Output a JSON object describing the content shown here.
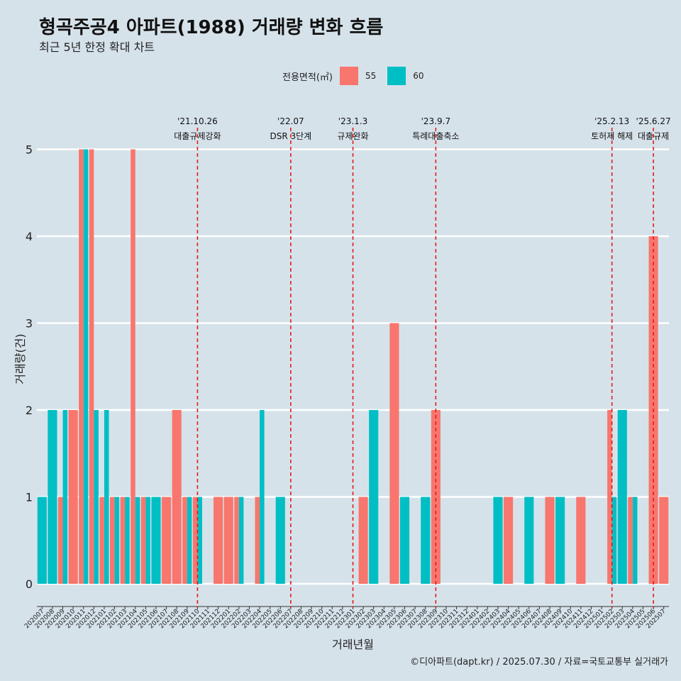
{
  "title": "형곡주공4 아파트(1988) 거래량 변화 흐름",
  "subtitle": "최근 5년 한정 확대 차트",
  "legend": {
    "title": "전용면적(㎡)",
    "items": [
      {
        "label": "55",
        "color": "#f8766d"
      },
      {
        "label": "60",
        "color": "#00bfc4"
      }
    ]
  },
  "caption": "©디아파트(dapt.kr) / 2025.07.30 / 자료=국토교통부 실거래가",
  "chart_data": {
    "type": "bar",
    "title": "형곡주공4 아파트(1988) 거래량 변화 흐름",
    "xlabel": "거래년월",
    "ylabel": "거래량(건)",
    "ylim": [
      0,
      5
    ],
    "yticks": [
      0,
      1,
      2,
      3,
      4,
      5
    ],
    "categories": [
      "202007",
      "202008",
      "202009",
      "202010",
      "202011",
      "202012",
      "202101",
      "202102",
      "202103",
      "202104",
      "202105",
      "202106",
      "202107",
      "202108",
      "202109",
      "202110",
      "202111",
      "202112",
      "202201",
      "202202",
      "202203",
      "202204",
      "202205",
      "202206",
      "202207",
      "202208",
      "202209",
      "202210",
      "202211",
      "202212",
      "202301",
      "202302",
      "202303",
      "202304",
      "202305",
      "202306",
      "202307",
      "202308",
      "202309",
      "202310",
      "202311",
      "202312",
      "202401",
      "202402",
      "202403",
      "202404",
      "202405",
      "202406",
      "202407",
      "202408",
      "202409",
      "202410",
      "202411",
      "202412",
      "202501",
      "202502",
      "202503",
      "202504",
      "202505",
      "202506",
      "202507"
    ],
    "series": [
      {
        "name": "55",
        "color": "#f8766d",
        "values": [
          0,
          0,
          1,
          2,
          5,
          5,
          1,
          1,
          1,
          5,
          1,
          0,
          1,
          2,
          1,
          1,
          0,
          1,
          1,
          1,
          0,
          1,
          0,
          0,
          0,
          0,
          0,
          0,
          0,
          0,
          0,
          1,
          0,
          0,
          3,
          0,
          0,
          0,
          2,
          0,
          0,
          0,
          0,
          0,
          0,
          1,
          0,
          0,
          0,
          1,
          0,
          0,
          1,
          0,
          0,
          2,
          0,
          1,
          0,
          4,
          1
        ]
      },
      {
        "name": "60",
        "color": "#00bfc4",
        "values": [
          1,
          2,
          2,
          0,
          5,
          2,
          2,
          1,
          1,
          1,
          1,
          1,
          0,
          0,
          1,
          1,
          0,
          0,
          0,
          1,
          0,
          2,
          0,
          1,
          0,
          0,
          0,
          0,
          0,
          0,
          0,
          0,
          2,
          0,
          0,
          1,
          0,
          1,
          0,
          0,
          0,
          0,
          0,
          0,
          1,
          0,
          0,
          1,
          0,
          0,
          1,
          0,
          0,
          0,
          0,
          1,
          2,
          1,
          0,
          0,
          0
        ]
      }
    ],
    "annotations": [
      {
        "index": 15,
        "date": "'21.10.26",
        "label": "대출규제강화"
      },
      {
        "index": 24,
        "date": "'22.07",
        "label": "DSR 3단계"
      },
      {
        "index": 30,
        "date": "'23.1.3",
        "label": "규제완화"
      },
      {
        "index": 38,
        "date": "'23.9.7",
        "label": "특례대출축소"
      },
      {
        "index": 55,
        "date": "'25.2.13",
        "label": "토허제 해제"
      },
      {
        "index": 59,
        "date": "'25.6.27",
        "label": "대출규제"
      }
    ]
  }
}
